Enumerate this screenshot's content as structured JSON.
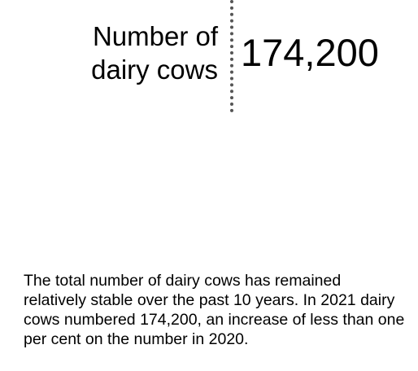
{
  "stat": {
    "label_line1": "Number of",
    "label_line2": "dairy cows",
    "value": "174,200"
  },
  "description": {
    "text": "The total number of dairy cows has remained relatively stable over the past 10 years. In 2021 dairy cows numbered 174,200, an increase of less than one per cent on the number in 2020."
  }
}
